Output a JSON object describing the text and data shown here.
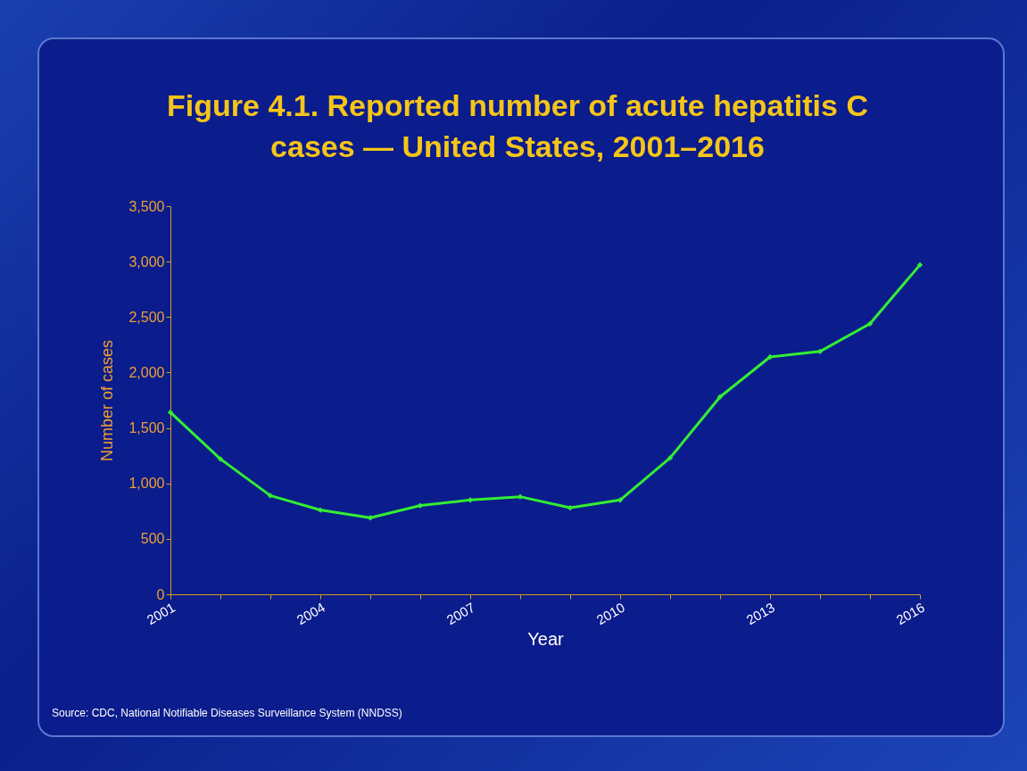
{
  "chart_data": {
    "type": "line",
    "title": "Figure 4.1. Reported number of acute hepatitis C cases — United States, 2001–2016",
    "xlabel": "Year",
    "ylabel": "Number of cases",
    "x": [
      2001,
      2002,
      2003,
      2004,
      2005,
      2006,
      2007,
      2008,
      2009,
      2010,
      2011,
      2012,
      2013,
      2014,
      2015,
      2016
    ],
    "series": [
      {
        "color": "#33ee33",
        "values": [
          1640,
          1220,
          890,
          760,
          690,
          800,
          850,
          880,
          780,
          850,
          1230,
          1780,
          2140,
          2190,
          2440,
          2970
        ]
      }
    ],
    "xlim": [
      2001,
      2016
    ],
    "xticks": [
      2001,
      {
        "value": 2002,
        "label": null
      },
      {
        "value": 2003,
        "label": null
      },
      2004,
      {
        "value": 2005,
        "label": null
      },
      {
        "value": 2006,
        "label": null
      },
      2007,
      {
        "value": 2008,
        "label": null
      },
      {
        "value": 2009,
        "label": null
      },
      2010,
      {
        "value": 2011,
        "label": null
      },
      {
        "value": 2012,
        "label": null
      },
      2013,
      {
        "value": 2014,
        "label": null
      },
      {
        "value": 2015,
        "label": null
      },
      2016
    ],
    "ylim": [
      0,
      3500
    ],
    "yticks": [
      0,
      500,
      {
        "value": 1000,
        "label": "1,000"
      },
      {
        "value": 1500,
        "label": "1,500"
      },
      {
        "value": 2000,
        "label": "2,000"
      },
      {
        "value": 2500,
        "label": "2,500"
      },
      {
        "value": 3000,
        "label": "3,000"
      },
      {
        "value": 3500,
        "label": "3,500"
      }
    ],
    "grid": false,
    "marker": "diamond",
    "line_style": "solid",
    "annotations": [
      "Source: CDC, National Notifiable Diseases Surveillance System (NNDSS)"
    ]
  }
}
